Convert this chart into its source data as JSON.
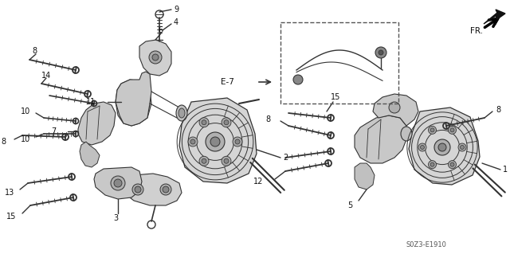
{
  "background_color": "#ffffff",
  "diagram_code": "S0Z3-E1910",
  "line_color": "#333333",
  "text_color": "#111111",
  "lw_main": 1.0,
  "lw_bold": 1.5,
  "fs_label": 7.0
}
